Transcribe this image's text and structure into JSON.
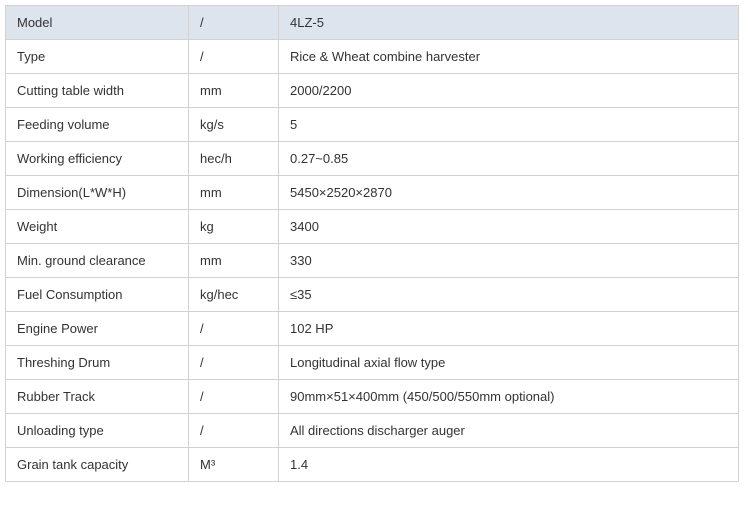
{
  "rows": [
    [
      "Model",
      "/",
      "4LZ-5"
    ],
    [
      "Type",
      "/",
      "Rice & Wheat combine harvester"
    ],
    [
      "Cutting table width",
      "mm",
      "2000/2200"
    ],
    [
      "Feeding volume",
      "kg/s",
      "5"
    ],
    [
      "Working efficiency",
      "hec/h",
      "0.27~0.85"
    ],
    [
      "Dimension(L*W*H)",
      "mm",
      "5450×2520×2870"
    ],
    [
      "Weight",
      "kg",
      "3400"
    ],
    [
      "Min. ground clearance",
      "mm",
      "330"
    ],
    [
      "Fuel Consumption",
      "kg/hec",
      "≤35"
    ],
    [
      "Engine Power",
      "/",
      "102 HP"
    ],
    [
      "Threshing Drum",
      "/",
      "Longitudinal axial flow type"
    ],
    [
      "Rubber Track",
      "/",
      "90mm×51×400mm (450/500/550mm optional)"
    ],
    [
      "Unloading type",
      "/",
      "All directions discharger auger"
    ],
    [
      "Grain tank capacity",
      "M³",
      "1.4"
    ]
  ],
  "colors": {
    "header_bg": "#dde4ee",
    "border": "#d2d2d2",
    "text": "#333333"
  }
}
